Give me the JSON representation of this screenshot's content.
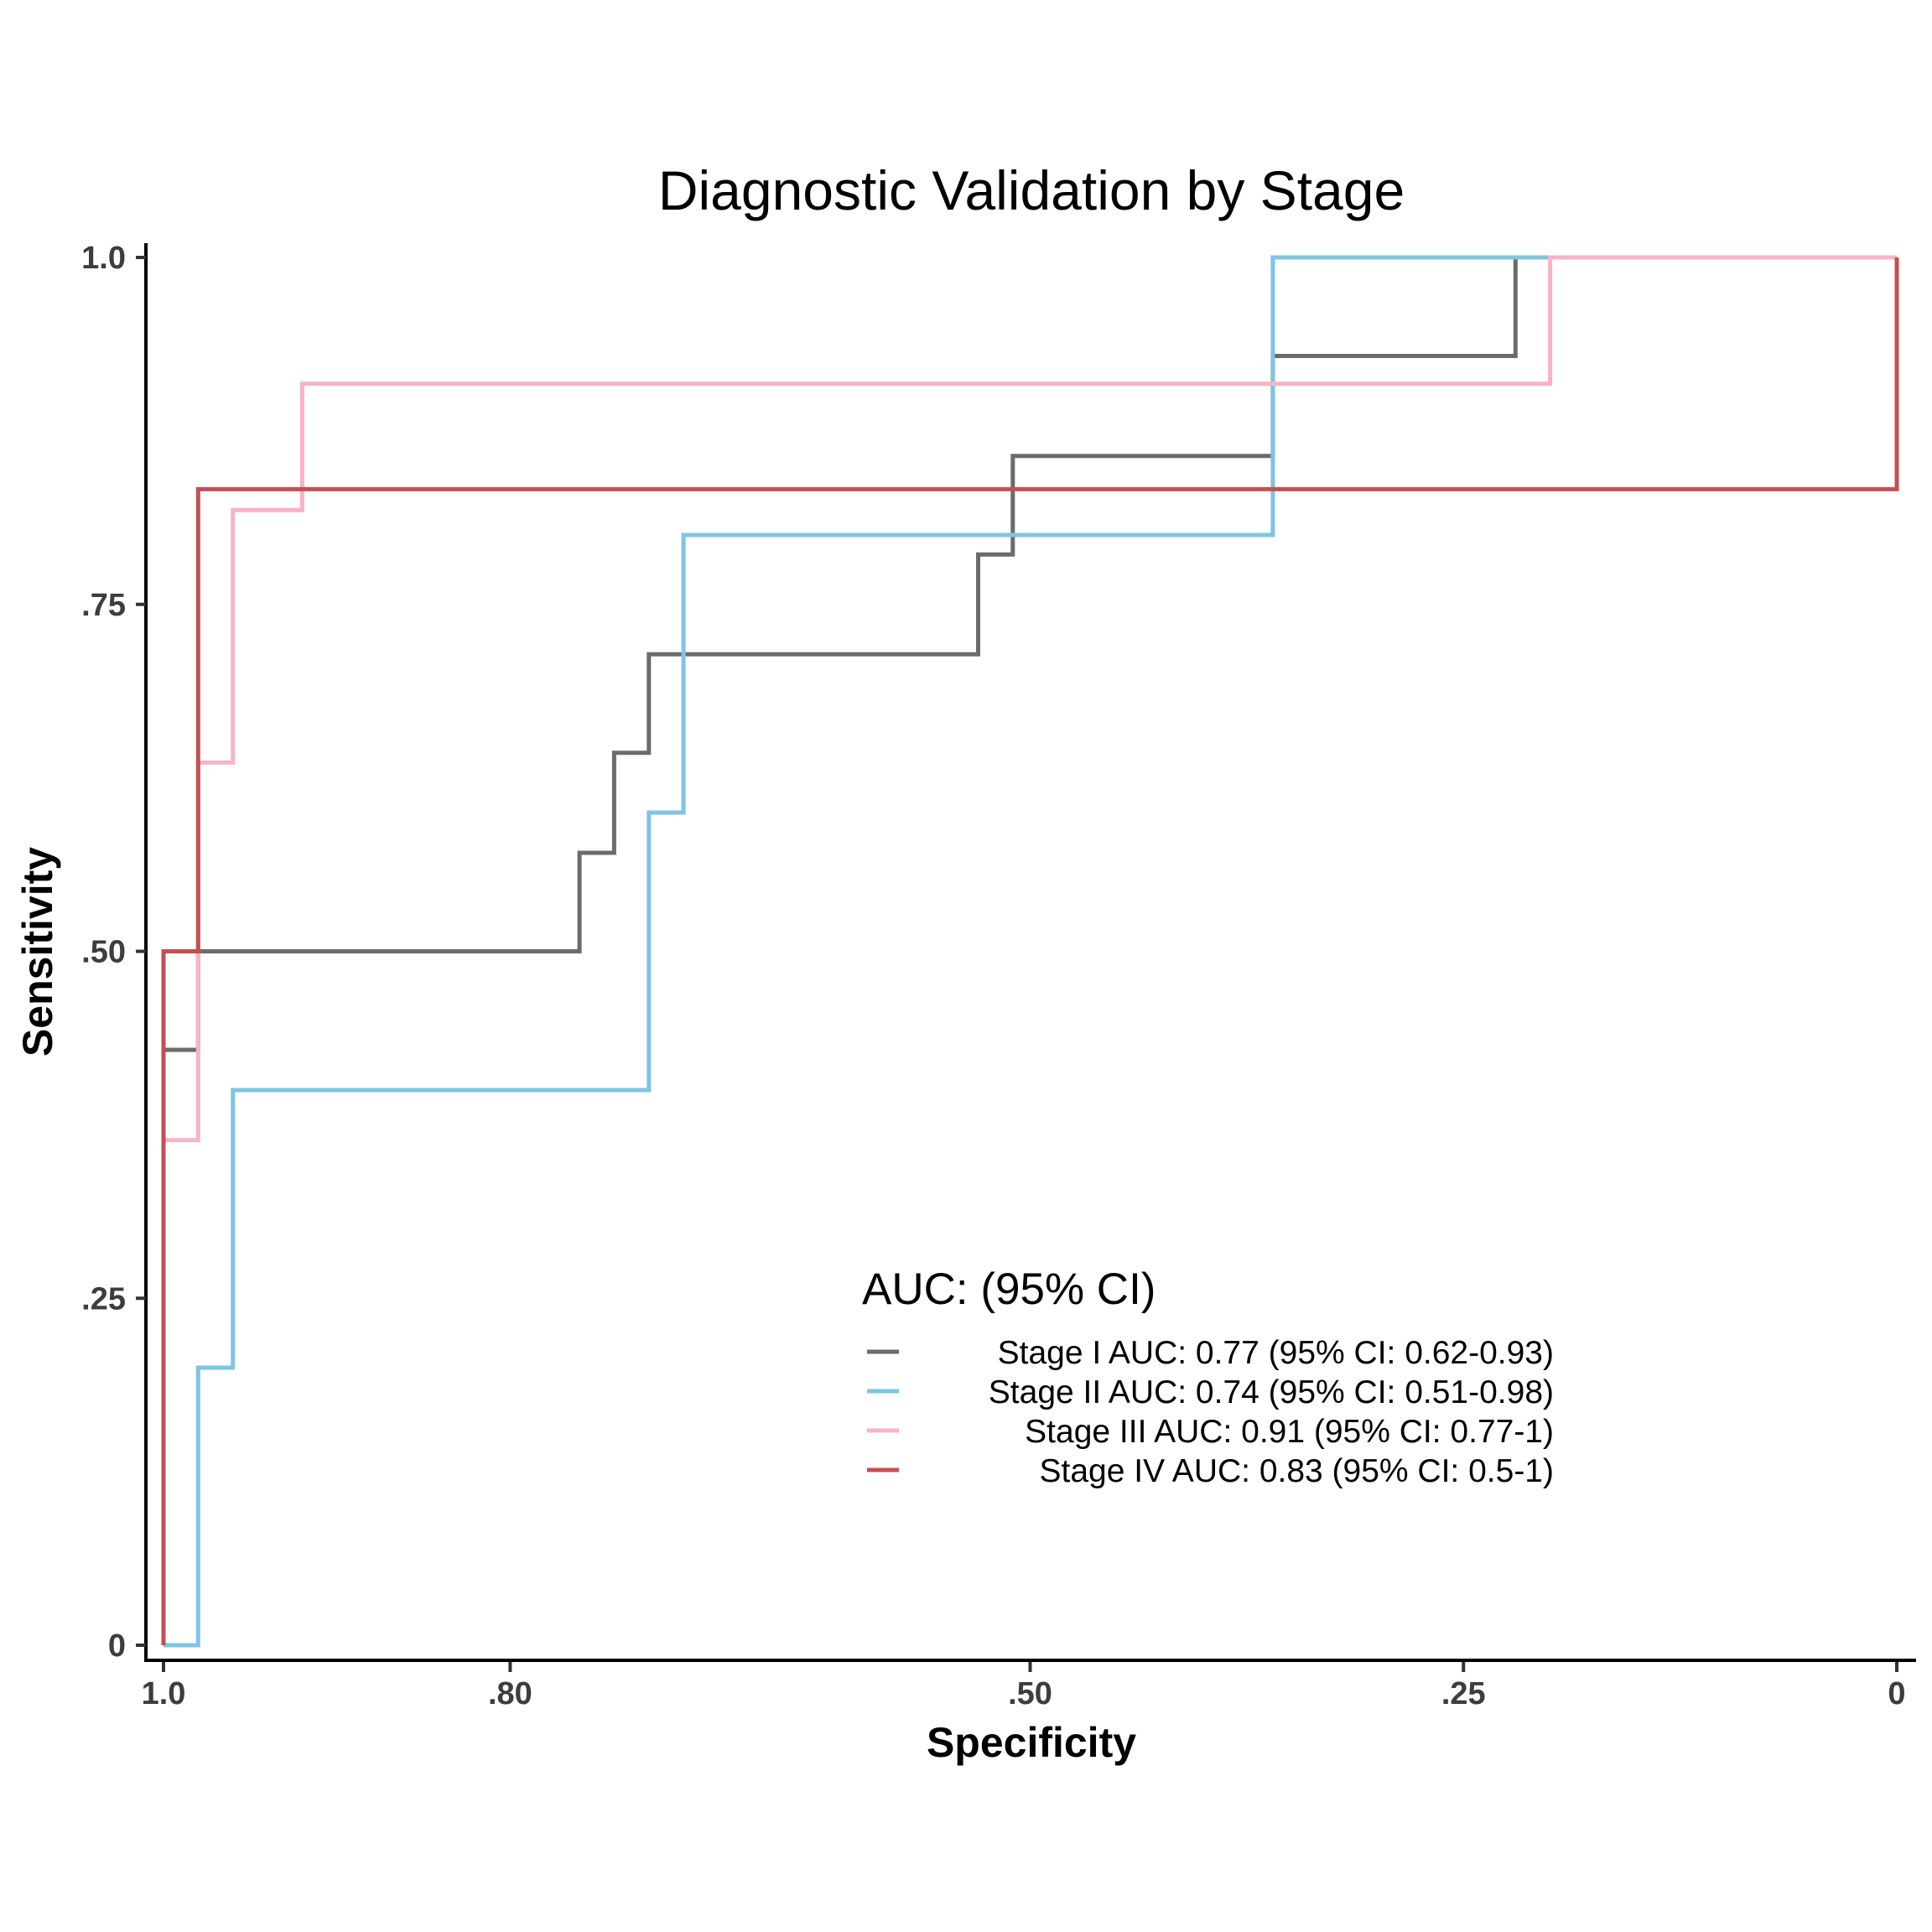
{
  "chart_data": {
    "type": "line",
    "title": "Diagnostic Validation by Stage",
    "xlabel": "Specificity",
    "ylabel": "Sensitivity",
    "xlim": [
      1.0,
      0
    ],
    "ylim": [
      0,
      1.0
    ],
    "x_reversed": true,
    "x_ticks": [
      {
        "value": 1.0,
        "label": "1.0"
      },
      {
        "value": 0.8,
        "label": ".80"
      },
      {
        "value": 0.5,
        "label": ".50"
      },
      {
        "value": 0.25,
        "label": ".25"
      },
      {
        "value": 0.0,
        "label": "0"
      }
    ],
    "y_ticks": [
      {
        "value": 0.0,
        "label": "0"
      },
      {
        "value": 0.25,
        "label": ".25"
      },
      {
        "value": 0.5,
        "label": ".50"
      },
      {
        "value": 0.75,
        "label": ".75"
      },
      {
        "value": 1.0,
        "label": "1.0"
      }
    ],
    "grid": false,
    "legend": {
      "title": "AUC: (95% CI)",
      "position": "bottom-right inside plot"
    },
    "series": [
      {
        "name": "Stage I AUC: 0.77 (95% CI: 0.62-0.93)",
        "color": "#6b6b6b",
        "points": [
          [
            1.0,
            0.0
          ],
          [
            1.0,
            0.429
          ],
          [
            0.98,
            0.429
          ],
          [
            0.98,
            0.5
          ],
          [
            0.76,
            0.5
          ],
          [
            0.76,
            0.571
          ],
          [
            0.74,
            0.571
          ],
          [
            0.74,
            0.643
          ],
          [
            0.72,
            0.643
          ],
          [
            0.72,
            0.714
          ],
          [
            0.53,
            0.714
          ],
          [
            0.53,
            0.786
          ],
          [
            0.51,
            0.786
          ],
          [
            0.51,
            0.857
          ],
          [
            0.36,
            0.857
          ],
          [
            0.36,
            0.929
          ],
          [
            0.22,
            0.929
          ],
          [
            0.22,
            1.0
          ],
          [
            0.0,
            1.0
          ]
        ]
      },
      {
        "name": "Stage II AUC: 0.74 (95% CI: 0.51-0.98)",
        "color": "#7ec4e4",
        "points": [
          [
            1.0,
            0.0
          ],
          [
            0.98,
            0.0
          ],
          [
            0.98,
            0.2
          ],
          [
            0.96,
            0.2
          ],
          [
            0.96,
            0.4
          ],
          [
            0.72,
            0.4
          ],
          [
            0.72,
            0.6
          ],
          [
            0.7,
            0.6
          ],
          [
            0.7,
            0.8
          ],
          [
            0.36,
            0.8
          ],
          [
            0.36,
            1.0
          ],
          [
            0.2,
            1.0
          ]
        ]
      },
      {
        "name": "Stage III AUC: 0.91 (95% CI: 0.77-1)",
        "color": "#f8b3c5",
        "points": [
          [
            1.0,
            0.0
          ],
          [
            1.0,
            0.364
          ],
          [
            0.98,
            0.364
          ],
          [
            0.98,
            0.636
          ],
          [
            0.96,
            0.636
          ],
          [
            0.96,
            0.818
          ],
          [
            0.92,
            0.818
          ],
          [
            0.92,
            0.909
          ],
          [
            0.2,
            0.909
          ],
          [
            0.2,
            1.0
          ],
          [
            0.0,
            1.0
          ]
        ]
      },
      {
        "name": "Stage IV AUC: 0.83 (95% CI: 0.5-1)",
        "color": "#c44e52",
        "points": [
          [
            1.0,
            0.0
          ],
          [
            1.0,
            0.5
          ],
          [
            0.98,
            0.5
          ],
          [
            0.98,
            0.833
          ],
          [
            0.0,
            0.833
          ],
          [
            0.0,
            1.0
          ]
        ]
      }
    ]
  }
}
